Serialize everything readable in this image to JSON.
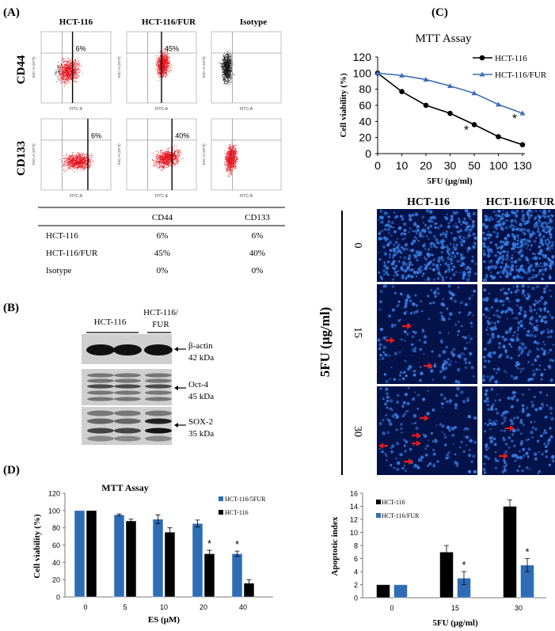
{
  "panel_labels": {
    "a": "(A)",
    "b": "(B)",
    "c": "(C)",
    "d": "(D)"
  },
  "flow": {
    "columns": [
      "HCT-116",
      "HCT-116/FUR",
      "Isotype"
    ],
    "rows": [
      "CD44",
      "CD133"
    ],
    "percentages": [
      [
        "6%",
        "45%",
        ""
      ],
      [
        "6%",
        "40%",
        ""
      ]
    ],
    "x_axis_label": "FITC-A",
    "y_axis_label": "SSC-A (10^3)",
    "colors": {
      "gated": "#e8141c",
      "ungated": "#1a1a1a"
    }
  },
  "table": {
    "headers": [
      "",
      "CD44",
      "CD133"
    ],
    "rows": [
      [
        "HCT-116",
        "6%",
        "6%"
      ],
      [
        "HCT-116/FUR",
        "45%",
        "40%"
      ],
      [
        "Isotype",
        "0%",
        "0%"
      ]
    ]
  },
  "western": {
    "groups": [
      "HCT-116",
      "HCT-116/",
      "FUR"
    ],
    "bands": [
      {
        "name": "β-actin",
        "size": "42 kDa"
      },
      {
        "name": "Oct-4",
        "size": "45 kDa"
      },
      {
        "name": "SOX-2",
        "size": "35 kDa"
      }
    ]
  },
  "microscopy": {
    "columns": [
      "HCT-116",
      "HCT-116/FUR"
    ],
    "rows": [
      "0",
      "15",
      "30"
    ],
    "axis_label": "5FU (μg/ml)",
    "stain_color": "#3a7de0",
    "arrow_color": "#e31b1b"
  },
  "chart_data": [
    {
      "type": "line",
      "title": "MTT Assay",
      "xlabel": "5FU (μg/ml)",
      "ylabel": "Cell viability (%)",
      "categories": [
        "0",
        "10",
        "20",
        "30",
        "50",
        "100",
        "130"
      ],
      "ylim": [
        0,
        120
      ],
      "yticks": [
        "0",
        "20",
        "40",
        "60",
        "80",
        "100",
        "120"
      ],
      "legend": "top-right",
      "series": [
        {
          "name": "HCT-116",
          "color": "#000000",
          "marker": "circle",
          "values": [
            100,
            77,
            60,
            50,
            36,
            21,
            11
          ],
          "errors": [
            1,
            2,
            1,
            1,
            3,
            3,
            3
          ]
        },
        {
          "name": "HCT-116/FUR",
          "color": "#3c6eb4",
          "marker": "triangle",
          "values": [
            100,
            97,
            92,
            84,
            75,
            61,
            50
          ],
          "errors": [
            1,
            1,
            1,
            2,
            2,
            2,
            2
          ]
        }
      ],
      "annotations": [
        {
          "text": "*",
          "category": "50",
          "series": "HCT-116"
        },
        {
          "text": "*",
          "category": "130",
          "series": "HCT-116/FUR"
        }
      ]
    },
    {
      "type": "bar",
      "title": "MTT Assay",
      "xlabel": "ES (μM)",
      "ylabel": "Cell viability (%)",
      "categories": [
        "0",
        "5",
        "10",
        "20",
        "40"
      ],
      "ylim": [
        0,
        120
      ],
      "yticks": [
        "0",
        "20",
        "40",
        "60",
        "80",
        "100",
        "120"
      ],
      "legend": "top-right",
      "series": [
        {
          "name": "HCT-116/5FUR",
          "color": "#2e6db5",
          "values": [
            100,
            95,
            90,
            85,
            50
          ],
          "errors": [
            0,
            1,
            5,
            4,
            3
          ]
        },
        {
          "name": "HCT-116",
          "color": "#000000",
          "values": [
            100,
            88,
            75,
            50,
            16
          ],
          "errors": [
            0,
            2,
            5,
            4,
            4
          ]
        }
      ],
      "annotations": [
        {
          "text": "*",
          "category": "20",
          "series": "HCT-116"
        },
        {
          "text": "*",
          "category": "40",
          "series": "HCT-116/5FUR"
        }
      ]
    },
    {
      "type": "bar",
      "title": "",
      "xlabel": "5FU (μg/ml)",
      "ylabel": "Apoptotic index",
      "categories": [
        "0",
        "15",
        "30"
      ],
      "ylim": [
        0,
        16
      ],
      "yticks": [
        "0",
        "2",
        "4",
        "6",
        "8",
        "10",
        "12",
        "14",
        "16"
      ],
      "legend": "top-left",
      "series": [
        {
          "name": "HCT-116",
          "color": "#000000",
          "values": [
            2,
            7,
            14
          ],
          "errors": [
            0,
            1,
            1
          ]
        },
        {
          "name": "HCT-116/FUR",
          "color": "#2e6db5",
          "values": [
            2,
            3,
            5
          ],
          "errors": [
            0,
            1,
            1
          ]
        }
      ],
      "annotations": [
        {
          "text": "*",
          "category": "15",
          "series": "HCT-116/FUR"
        },
        {
          "text": "*",
          "category": "30",
          "series": "HCT-116/FUR"
        }
      ]
    }
  ]
}
